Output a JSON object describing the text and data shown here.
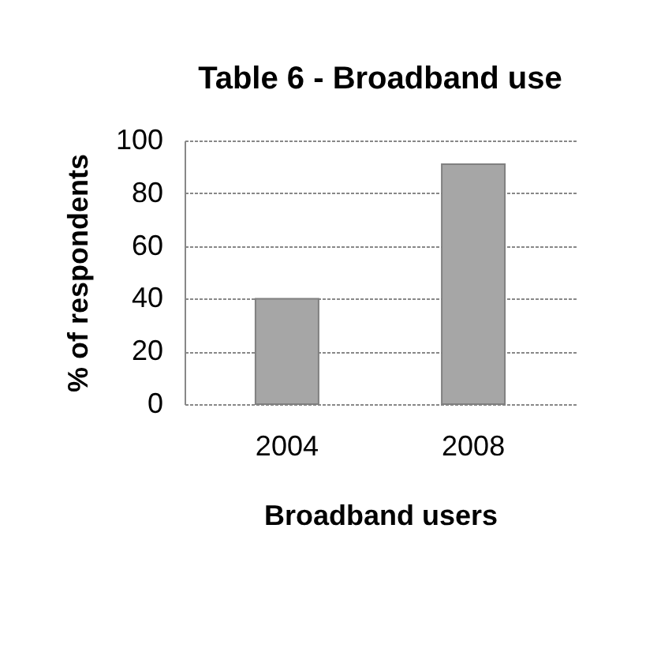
{
  "chart_data": {
    "type": "bar",
    "title": "Table 6 - Broadband use",
    "xlabel": "Broadband users",
    "ylabel": "% of respondents",
    "categories": [
      "2004",
      "2008"
    ],
    "values": [
      40,
      91
    ],
    "color": "#a6a6a6",
    "ylim": [
      0,
      100
    ],
    "yticks": [
      0,
      20,
      40,
      60,
      80,
      100
    ],
    "grid": "y"
  }
}
